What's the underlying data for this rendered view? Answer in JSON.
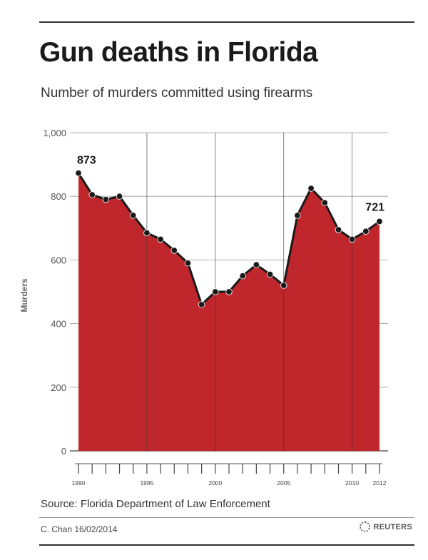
{
  "title": "Gun deaths in Florida",
  "subtitle": "Number of murders committed using firearms",
  "source": "Source: Florida Department of Law Enforcement",
  "credit": "C. Chan 16/02/2014",
  "publisher": "REUTERS",
  "colors": {
    "fill": "#c0272d",
    "line": "#1a1a1a",
    "grid": "#999999"
  },
  "chart_data": {
    "type": "area",
    "ylabel": "Murders",
    "xlabel": "",
    "ylim": [
      0,
      1000
    ],
    "yticks": [
      0,
      200,
      400,
      600,
      800,
      1000
    ],
    "ytick_labels": [
      "0",
      "200",
      "400",
      "600",
      "800",
      "1,000"
    ],
    "xlim": [
      1990,
      2012
    ],
    "xticks_labeled": [
      1990,
      1995,
      2000,
      2005,
      2010,
      2012
    ],
    "vertical_gridlines": [
      1995,
      2000,
      2005,
      2010
    ],
    "grid": true,
    "x": [
      1990,
      1991,
      1992,
      1993,
      1994,
      1995,
      1996,
      1997,
      1998,
      1999,
      2000,
      2001,
      2002,
      2003,
      2004,
      2005,
      2006,
      2007,
      2008,
      2009,
      2010,
      2011,
      2012
    ],
    "y": [
      873,
      805,
      790,
      800,
      740,
      685,
      665,
      630,
      590,
      460,
      500,
      500,
      550,
      585,
      555,
      520,
      740,
      825,
      780,
      695,
      665,
      690,
      721
    ],
    "annotations": [
      {
        "x": 1990,
        "y": 873,
        "text": "873"
      },
      {
        "x": 2012,
        "y": 721,
        "text": "721"
      }
    ]
  }
}
